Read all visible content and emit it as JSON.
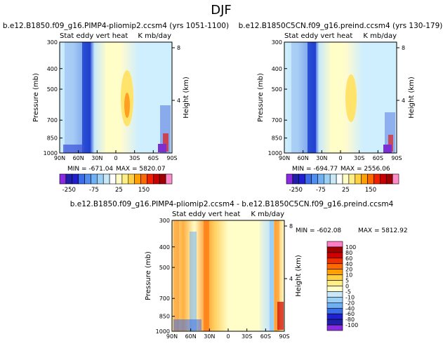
{
  "page_title": "DJF",
  "panels": [
    {
      "id": "top-left",
      "case": "b.e12.B1850.f09_g16.PIMP4-pliomip2.ccsm4 (yrs 1051-1100)",
      "variable": "Stat eddy vert heat",
      "units": "K mb/day",
      "min_label": "MIN = -671.04",
      "max_label": "MAX = 5820.07"
    },
    {
      "id": "top-right",
      "case": "b.e12.B1850C5CN.f09_g16.preind.ccsm4 (yrs 130-179)",
      "variable": "Stat eddy vert heat",
      "units": "K mb/day",
      "min_label": "MIN = -694.77",
      "max_label": "MAX = 2556.06"
    },
    {
      "id": "bottom",
      "case": "b.e12.B1850.f09_g16.PIMP4-pliomip2.ccsm4 - b.e12.B1850C5CN.f09_g16.preind.ccsm4",
      "variable": "Stat eddy vert heat",
      "units": "K mb/day",
      "min_label": "MIN = -602.08",
      "max_label": "MAX = 5812.92"
    }
  ],
  "colors": {
    "fill": "#ffffff",
    "text": "#000000",
    "panel_border": "#000000",
    "bar_border": "#000000"
  },
  "top_colorbar": {
    "labels": [
      "-250",
      "-75",
      "25",
      "150"
    ],
    "colors": [
      "#8a2be2",
      "#1f1fa8",
      "#2020d0",
      "#3a6ee8",
      "#4f8ef0",
      "#6fb0f2",
      "#9ad0f6",
      "#c8e8fa",
      "#ffffff",
      "#fffdc8",
      "#ffee88",
      "#ffd040",
      "#ffa000",
      "#ff6a00",
      "#f02000",
      "#c80000",
      "#a00000",
      "#ff8cc8"
    ]
  },
  "bottom_colorbar": {
    "labels": [
      "100",
      "80",
      "60",
      "40",
      "20",
      "10",
      "5",
      "0",
      "-5",
      "-10",
      "-20",
      "-40",
      "-60",
      "-80",
      "-100"
    ],
    "colors": [
      "#ff7ec8",
      "#a00000",
      "#d00000",
      "#f03000",
      "#ff6a00",
      "#ffa000",
      "#ffd040",
      "#ffee88",
      "#fffdc8",
      "#c8e8fa",
      "#9ad0f6",
      "#6fb0f2",
      "#3a6ee8",
      "#2020d0",
      "#1f1fa8",
      "#8a2be2"
    ]
  },
  "chart_data": [
    {
      "type": "heatmap",
      "title": "b.e12.B1850.f09_g16.PIMP4-pliomip2.ccsm4 (yrs 1051-1100)",
      "subtitle": "Stat eddy vert heat  K mb/day",
      "xlabel": "",
      "ylabel": "Pressure (mb)",
      "y2label": "Height (km)",
      "x_tick_labels": [
        "90N",
        "60N",
        "30N",
        "0",
        "30S",
        "60S",
        "90S"
      ],
      "x_tick_values": [
        90,
        60,
        30,
        0,
        -30,
        -60,
        -90
      ],
      "xlim": [
        90,
        -90
      ],
      "y_tick_labels": [
        "300",
        "400",
        "500",
        "700",
        "850",
        "1000"
      ],
      "y_tick_values": [
        300,
        400,
        500,
        700,
        850,
        1000
      ],
      "ylim": [
        300,
        1000
      ],
      "y2_tick_labels": [
        "8",
        "4"
      ],
      "y2_tick_values": [
        8,
        4
      ],
      "min": -671.04,
      "max": 5820.07
    },
    {
      "type": "heatmap",
      "title": "b.e12.B1850C5CN.f09_g16.preind.ccsm4 (yrs 130-179)",
      "subtitle": "Stat eddy vert heat  K mb/day",
      "xlabel": "",
      "ylabel": "Pressure (mb)",
      "y2label": "Height (km)",
      "x_tick_labels": [
        "90N",
        "60N",
        "30N",
        "0",
        "30S",
        "60S",
        "90S"
      ],
      "x_tick_values": [
        90,
        60,
        30,
        0,
        -30,
        -60,
        -90
      ],
      "xlim": [
        90,
        -90
      ],
      "y_tick_labels": [
        "300",
        "400",
        "500",
        "700",
        "850",
        "1000"
      ],
      "y_tick_values": [
        300,
        400,
        500,
        700,
        850,
        1000
      ],
      "ylim": [
        300,
        1000
      ],
      "y2_tick_labels": [
        "8",
        "4"
      ],
      "y2_tick_values": [
        8,
        4
      ],
      "min": -694.77,
      "max": 2556.06
    },
    {
      "type": "heatmap",
      "title": "b.e12.B1850.f09_g16.PIMP4-pliomip2.ccsm4 - b.e12.B1850C5CN.f09_g16.preind.ccsm4",
      "subtitle": "Stat eddy vert heat  K mb/day",
      "xlabel": "",
      "ylabel": "Pressure (mb)",
      "y2label": "Height (km)",
      "x_tick_labels": [
        "90N",
        "60N",
        "30N",
        "0",
        "30S",
        "60S",
        "90S"
      ],
      "x_tick_values": [
        90,
        60,
        30,
        0,
        -30,
        -60,
        -90
      ],
      "xlim": [
        90,
        -90
      ],
      "y_tick_labels": [
        "300",
        "400",
        "500",
        "700",
        "850",
        "1000"
      ],
      "y_tick_values": [
        300,
        400,
        500,
        700,
        850,
        1000
      ],
      "ylim": [
        300,
        1000
      ],
      "y2_tick_labels": [
        "8",
        "4"
      ],
      "y2_tick_values": [
        8,
        4
      ],
      "min": -602.08,
      "max": 5812.92
    }
  ]
}
